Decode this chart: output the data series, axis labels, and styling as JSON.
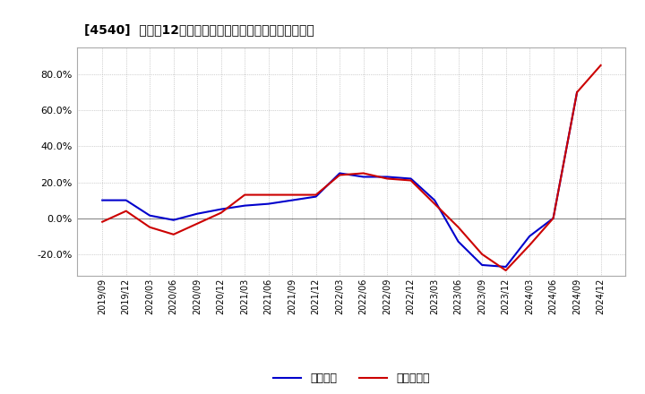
{
  "title": "[4540]  利益の12か月移動合計の対前年同期増減率の推移",
  "legend_labels": [
    "経常利益",
    "当期純利益"
  ],
  "line_colors": [
    "#0000cc",
    "#cc0000"
  ],
  "background_color": "#ffffff",
  "plot_bg_color": "#ffffff",
  "grid_color": "#aaaaaa",
  "border_color": "#aaaaaa",
  "ylim": [
    -32,
    95
  ],
  "yticks": [
    -20.0,
    0.0,
    20.0,
    40.0,
    60.0,
    80.0
  ],
  "x_labels": [
    "2019/09",
    "2019/12",
    "2020/03",
    "2020/06",
    "2020/09",
    "2020/12",
    "2021/03",
    "2021/06",
    "2021/09",
    "2021/12",
    "2022/03",
    "2022/06",
    "2022/09",
    "2022/12",
    "2023/03",
    "2023/06",
    "2023/09",
    "2023/12",
    "2024/03",
    "2024/06",
    "2024/09",
    "2024/12"
  ],
  "operating_profit": [
    10.0,
    10.0,
    1.5,
    -1.0,
    2.5,
    5.0,
    7.0,
    8.0,
    10.0,
    12.0,
    25.0,
    23.0,
    23.0,
    22.0,
    10.0,
    -13.0,
    -26.0,
    -27.0,
    -10.0,
    0.0,
    70.0,
    null
  ],
  "net_profit": [
    -2.0,
    4.0,
    -5.0,
    -9.0,
    -3.0,
    3.0,
    13.0,
    13.0,
    13.0,
    13.0,
    24.0,
    25.0,
    22.0,
    21.0,
    8.0,
    -5.0,
    -20.0,
    -29.0,
    -15.0,
    0.0,
    70.0,
    85.0
  ]
}
